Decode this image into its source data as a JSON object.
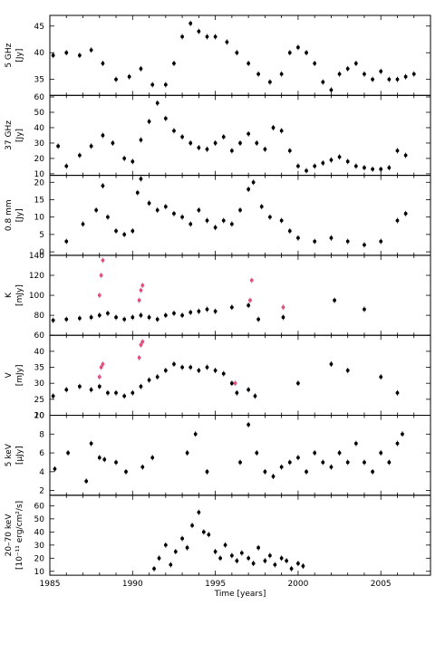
{
  "chart_data": {
    "type": "scatter",
    "xlabel": "Time [years]",
    "xlim": [
      1985,
      2008
    ],
    "xticks": [
      1985,
      1990,
      1995,
      2000,
      2005
    ],
    "colors": {
      "main": "#000000",
      "highlight": "#e0507a"
    },
    "panels": [
      {
        "id": "5ghz",
        "ylabel": "5 GHz",
        "yunit": "[Jy]",
        "ylim": [
          32,
          47
        ],
        "yticks": [
          35,
          40,
          45
        ],
        "series": [
          {
            "color": "main",
            "x": [
              1985.2,
              1986,
              1986.8,
              1987.5,
              1988.2,
              1989,
              1989.8,
              1990.5,
              1991.2,
              1992,
              1992.5,
              1993,
              1993.5,
              1994,
              1994.5,
              1995,
              1995.7,
              1996.3,
              1997,
              1997.6,
              1998.3,
              1999,
              1999.5,
              2000,
              2000.5,
              2001,
              2001.5,
              2002,
              2002.5,
              2003,
              2003.5,
              2004,
              2004.5,
              2005,
              2005.5,
              2006,
              2006.5,
              2007
            ],
            "y": [
              39.5,
              40,
              39.5,
              40.5,
              38,
              35,
              35.5,
              37,
              34,
              34,
              38,
              43,
              45.5,
              44,
              43,
              43,
              42,
              40,
              38,
              36,
              34.5,
              36,
              40,
              41,
              40,
              38,
              34.5,
              33,
              36,
              37,
              38,
              36,
              35,
              36.5,
              35,
              35,
              35.5,
              36
            ]
          }
        ]
      },
      {
        "id": "37ghz",
        "ylabel": "37 GHz",
        "yunit": "[Jy]",
        "ylim": [
          9,
          61
        ],
        "yticks": [
          10,
          20,
          30,
          40,
          50,
          60
        ],
        "series": [
          {
            "color": "main",
            "x": [
              1985.5,
              1986,
              1986.8,
              1987.5,
              1988.2,
              1988.8,
              1989.5,
              1990,
              1990.5,
              1991,
              1991.5,
              1992,
              1992.5,
              1993,
              1993.5,
              1994,
              1994.5,
              1995,
              1995.5,
              1996,
              1996.5,
              1997,
              1997.5,
              1998,
              1998.5,
              1999,
              1999.5,
              2000,
              2000.5,
              2001,
              2001.5,
              2002,
              2002.5,
              2003,
              2003.5,
              2004,
              2004.5,
              2005,
              2005.5,
              2006,
              2006.5
            ],
            "y": [
              28,
              15,
              22,
              28,
              35,
              30,
              20,
              18,
              32,
              44,
              56,
              46,
              38,
              34,
              30,
              27,
              26,
              30,
              34,
              25,
              30,
              36,
              30,
              26,
              40,
              38,
              25,
              15,
              12,
              15,
              17,
              19,
              21,
              18,
              15,
              14,
              13,
              13,
              14,
              25,
              22
            ]
          }
        ]
      },
      {
        "id": "08mm",
        "ylabel": "0.8 mm",
        "yunit": "[Jy]",
        "ylim": [
          -1,
          22
        ],
        "yticks": [
          0,
          5,
          10,
          15,
          20
        ],
        "series": [
          {
            "color": "main",
            "x": [
              1986,
              1987,
              1987.8,
              1988.2,
              1988.5,
              1989,
              1989.5,
              1990,
              1990.3,
              1990.5,
              1991,
              1991.5,
              1992,
              1992.5,
              1993,
              1993.5,
              1994,
              1994.5,
              1995,
              1995.5,
              1996,
              1996.5,
              1997,
              1997.3,
              1997.8,
              1998.3,
              1999,
              1999.5,
              2000,
              2001,
              2002,
              2003,
              2004,
              2005,
              2006,
              2006.5
            ],
            "y": [
              3,
              8,
              12,
              19,
              10,
              6,
              5,
              6,
              17,
              21,
              14,
              12,
              13,
              11,
              10,
              8,
              12,
              9,
              7,
              9,
              8,
              12,
              18,
              20,
              13,
              10,
              9,
              6,
              4,
              3,
              4,
              3,
              2,
              3,
              9,
              11
            ]
          }
        ]
      },
      {
        "id": "k",
        "ylabel": "K",
        "yunit": "[mJy]",
        "ylim": [
          60,
          140
        ],
        "yticks": [
          60,
          80,
          100,
          120,
          140
        ],
        "series": [
          {
            "color": "main",
            "x": [
              1985.2,
              1986,
              1986.8,
              1987.5,
              1988,
              1988.5,
              1989,
              1989.5,
              1990,
              1990.5,
              1991,
              1991.5,
              1992,
              1992.5,
              1993,
              1993.5,
              1994,
              1994.5,
              1995,
              1996,
              1997,
              1997.6,
              1999.1,
              2002.2,
              2004
            ],
            "y": [
              75,
              76,
              77,
              78,
              80,
              82,
              78,
              76,
              78,
              80,
              78,
              76,
              80,
              82,
              80,
              83,
              84,
              86,
              84,
              88,
              90,
              76,
              78,
              95,
              86
            ]
          },
          {
            "color": "highlight",
            "x": [
              1988,
              1988.1,
              1988.2,
              1990.4,
              1990.5,
              1990.6,
              1997.1,
              1997.2,
              1999.1
            ],
            "y": [
              100,
              120,
              135,
              95,
              105,
              110,
              95,
              115,
              88
            ]
          }
        ]
      },
      {
        "id": "v",
        "ylabel": "V",
        "yunit": "[mJy]",
        "ylim": [
          20,
          45
        ],
        "yticks": [
          20,
          25,
          30,
          35,
          40
        ],
        "series": [
          {
            "color": "main",
            "x": [
              1985.2,
              1986,
              1986.8,
              1987.5,
              1988,
              1988.5,
              1989,
              1989.5,
              1990,
              1990.5,
              1991,
              1991.5,
              1992,
              1992.5,
              1993,
              1993.5,
              1994,
              1994.5,
              1995,
              1995.5,
              1996,
              1996.3,
              1997,
              1997.4,
              2000,
              2002,
              2003,
              2005,
              2006
            ],
            "y": [
              26,
              28,
              29,
              28,
              29,
              27,
              27,
              26,
              27,
              29,
              31,
              32,
              34,
              36,
              35,
              35,
              34,
              35,
              34,
              33,
              30,
              27,
              28,
              26,
              30,
              36,
              34,
              32,
              27
            ]
          },
          {
            "color": "highlight",
            "x": [
              1988,
              1988.1,
              1988.2,
              1990.4,
              1990.5,
              1990.6,
              1996.2
            ],
            "y": [
              32,
              35,
              36,
              38,
              42,
              43,
              30
            ]
          }
        ]
      },
      {
        "id": "5kev",
        "ylabel": "5 keV",
        "yunit": "[μJy]",
        "ylim": [
          1.5,
          10
        ],
        "yticks": [
          2,
          4,
          6,
          8,
          10
        ],
        "series": [
          {
            "color": "main",
            "x": [
              1985.3,
              1986.1,
              1987.2,
              1987.5,
              1988,
              1988.3,
              1989,
              1989.6,
              1990.6,
              1991.2,
              1993.3,
              1993.8,
              1994.5,
              1996.5,
              1997,
              1997.5,
              1998,
              1998.5,
              1999,
              1999.5,
              2000,
              2000.5,
              2001,
              2001.5,
              2002,
              2002.5,
              2003,
              2003.5,
              2004,
              2004.5,
              2005,
              2005.5,
              2006,
              2006.3
            ],
            "y": [
              4.3,
              6,
              3,
              7,
              5.5,
              5.3,
              5,
              4,
              4.5,
              5.5,
              6,
              8,
              4,
              5,
              9,
              6,
              4,
              3.5,
              4.5,
              5,
              5.5,
              4,
              6,
              5,
              4.5,
              6,
              5,
              7,
              5,
              4,
              6,
              5,
              7,
              8
            ]
          }
        ]
      },
      {
        "id": "20-70kev",
        "ylabel": "20–70 keV",
        "yunit": "[10⁻¹¹ erg/cm²/s]",
        "ylim": [
          7,
          68
        ],
        "yticks": [
          10,
          20,
          30,
          40,
          50,
          60
        ],
        "series": [
          {
            "color": "main",
            "x": [
              1991.3,
              1991.6,
              1992,
              1992.3,
              1992.6,
              1993,
              1993.3,
              1993.6,
              1994,
              1994.3,
              1994.6,
              1995,
              1995.3,
              1995.6,
              1996,
              1996.3,
              1996.6,
              1997,
              1997.3,
              1997.6,
              1998,
              1998.3,
              1998.6,
              1999,
              1999.3,
              1999.6,
              2000,
              2000.3
            ],
            "y": [
              12,
              20,
              30,
              15,
              25,
              35,
              28,
              45,
              55,
              40,
              38,
              25,
              20,
              30,
              22,
              18,
              24,
              20,
              16,
              28,
              18,
              22,
              15,
              20,
              18,
              12,
              16,
              14
            ]
          }
        ]
      }
    ]
  }
}
